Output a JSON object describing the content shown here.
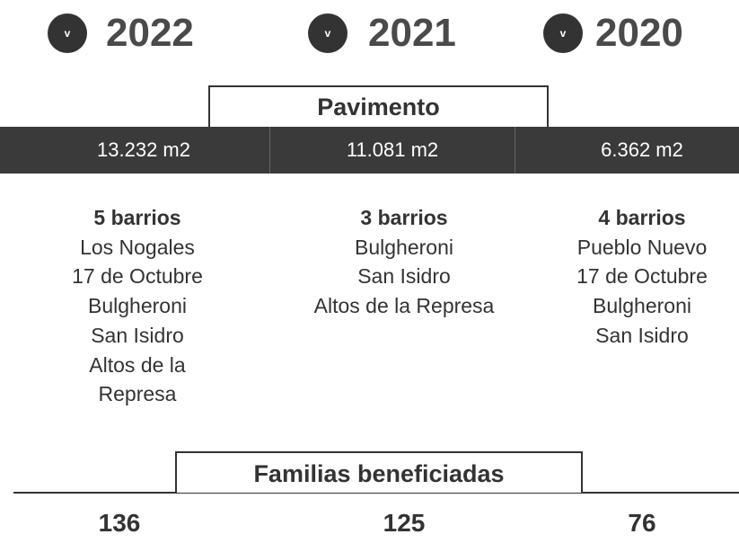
{
  "columns": [
    {
      "toggle": "v",
      "year": "2022",
      "pavimento": "13.232 m2",
      "barrios_title": "5 barrios",
      "barrios": [
        "Los Nogales",
        "17 de Octubre",
        "Bulgheroni",
        "San Isidro",
        "Altos de la",
        "Represa"
      ],
      "familias": 136
    },
    {
      "toggle": "v",
      "year": "2021",
      "pavimento": "11.081 m2",
      "barrios_title": "3 barrios",
      "barrios": [
        "Bulgheroni",
        "San Isidro",
        "Altos de la Represa"
      ],
      "familias": 125
    },
    {
      "toggle": "v",
      "year": "2020",
      "pavimento": "6.362 m2",
      "barrios_title": "4 barrios",
      "barrios": [
        "Pueblo Nuevo",
        "17 de Octubre",
        "Bulgheroni",
        "San Isidro"
      ],
      "familias": 76
    }
  ],
  "pavimento_title": "Pavimento",
  "familias_title": "Familias beneficiadas"
}
